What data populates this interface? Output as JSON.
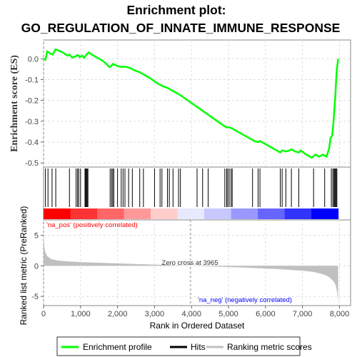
{
  "title_line1": "Enrichment plot:",
  "title_line2": "GO_REGULATION_OF_INNATE_IMMUNE_RESPONSE",
  "colors": {
    "es_line": "#00ff00",
    "hits": "#000000",
    "metric_fill": "#c0c0c0",
    "pos_label": "#ff0000",
    "neg_label": "#0000ff",
    "grid": "#dddddd"
  },
  "chart_data": [
    {
      "type": "line",
      "name": "enrichment-score",
      "ylabel": "Enrichment score (ES)",
      "ylim": [
        -0.52,
        0.09
      ],
      "yticks": [
        0.0,
        -0.1,
        -0.2,
        -0.3,
        -0.4,
        -0.5
      ],
      "ytick_labels": [
        "0.0",
        "-0.1",
        "-0.2",
        "-0.3",
        "-0.4",
        "-0.5"
      ],
      "grid": true,
      "x": [
        0,
        50,
        100,
        180,
        250,
        320,
        420,
        520,
        650,
        700,
        780,
        850,
        920,
        980,
        1040,
        1100,
        1160,
        1220,
        1320,
        1450,
        1600,
        1700,
        1780,
        1830,
        1870,
        1920,
        2000,
        2100,
        2180,
        2260,
        2350,
        2450,
        2600,
        2750,
        2900,
        3050,
        3200,
        3350,
        3500,
        3700,
        3900,
        4100,
        4300,
        4500,
        4700,
        4900,
        4950,
        5000,
        5100,
        5300,
        5500,
        5700,
        5800,
        5850,
        5950,
        6100,
        6300,
        6400,
        6450,
        6550,
        6650,
        6700,
        6800,
        6900,
        6950,
        7100,
        7250,
        7350,
        7450,
        7550,
        7650,
        7720,
        7760,
        7800,
        7830,
        7860,
        7890,
        7910,
        7930,
        7950,
        7965
      ],
      "y": [
        0.0,
        -0.005,
        0.035,
        0.025,
        0.02,
        0.045,
        0.038,
        0.03,
        0.015,
        0.02,
        0.005,
        0.01,
        0.018,
        0.008,
        0.015,
        0.005,
        0.02,
        0.03,
        0.018,
        0.005,
        -0.01,
        -0.025,
        -0.04,
        -0.035,
        -0.025,
        -0.028,
        -0.035,
        -0.04,
        -0.038,
        -0.04,
        -0.045,
        -0.055,
        -0.065,
        -0.08,
        -0.095,
        -0.115,
        -0.13,
        -0.14,
        -0.155,
        -0.175,
        -0.2,
        -0.225,
        -0.25,
        -0.275,
        -0.3,
        -0.325,
        -0.33,
        -0.328,
        -0.335,
        -0.355,
        -0.375,
        -0.395,
        -0.4,
        -0.395,
        -0.405,
        -0.42,
        -0.44,
        -0.45,
        -0.44,
        -0.445,
        -0.44,
        -0.435,
        -0.445,
        -0.45,
        -0.44,
        -0.46,
        -0.475,
        -0.46,
        -0.47,
        -0.46,
        -0.47,
        -0.43,
        -0.38,
        -0.37,
        -0.32,
        -0.25,
        -0.17,
        -0.1,
        -0.05,
        -0.02,
        0.0
      ]
    },
    {
      "type": "scatter",
      "name": "hits",
      "x": [
        50,
        120,
        230,
        330,
        700,
        880,
        920,
        950,
        1000,
        1120,
        1140,
        1160,
        1180,
        1200,
        1800,
        1840,
        1870,
        1900,
        2000,
        2100,
        2150,
        2200,
        2300,
        2400,
        2600,
        2700,
        3000,
        3150,
        3200,
        3350,
        3400,
        3500,
        3650,
        3700,
        4150,
        4300,
        4450,
        4900,
        4950,
        4980,
        5020,
        5070,
        5100,
        5650,
        5800,
        5850,
        6400,
        6450,
        6550,
        6700,
        6900,
        7300,
        7600,
        7780,
        7820,
        7850,
        7870,
        7890,
        7910,
        7930
      ]
    },
    {
      "type": "area",
      "name": "ranked-list-metric",
      "xlabel": "Rank in Ordered Dataset",
      "ylabel": "Ranked list metric (PreRanked)",
      "xlim": [
        0,
        8300
      ],
      "ylim": [
        -6.5,
        7.5
      ],
      "xticks": [
        0,
        1000,
        2000,
        3000,
        4000,
        5000,
        6000,
        7000,
        8000
      ],
      "xtick_labels": [
        "0",
        "1,000",
        "2,000",
        "3,000",
        "4,000",
        "5,000",
        "6,000",
        "7,000",
        "8,000"
      ],
      "yticks": [
        5,
        0,
        -5
      ],
      "ytick_labels": [
        "5",
        "0",
        "-5"
      ],
      "x": [
        0,
        20,
        50,
        100,
        200,
        400,
        700,
        1000,
        1500,
        2000,
        2500,
        3000,
        3500,
        3965,
        4500,
        5000,
        5500,
        6000,
        6500,
        7000,
        7300,
        7500,
        7650,
        7750,
        7850,
        7900,
        7930,
        7950,
        7965
      ],
      "y": [
        5.0,
        3.2,
        2.2,
        1.6,
        1.1,
        0.85,
        0.7,
        0.6,
        0.5,
        0.4,
        0.3,
        0.2,
        0.1,
        0.0,
        -0.1,
        -0.2,
        -0.3,
        -0.45,
        -0.6,
        -0.8,
        -1.0,
        -1.3,
        -1.6,
        -2.0,
        -2.6,
        -3.2,
        -4.0,
        -5.0,
        -6.0
      ]
    }
  ],
  "labels": {
    "pos": "'na_pos' (positively correlated)",
    "neg": "'na_neg' (negatively correlated)",
    "zero_cross": "Zero cross at 3965"
  },
  "zero_cross_rank": 3965,
  "legend": [
    {
      "label": "Enrichment profile",
      "color": "#00ff00"
    },
    {
      "label": "Hits",
      "color": "#000000"
    },
    {
      "label": "Ranking metric scores",
      "color": "#c0c0c0"
    }
  ],
  "heatmap_colors": [
    "#ff0000",
    "#ff3333",
    "#ff6666",
    "#ff9999",
    "#ffcccc",
    "#e8e8ff",
    "#c8c8ff",
    "#9999ff",
    "#6666ff",
    "#3333ff",
    "#0000ff"
  ]
}
